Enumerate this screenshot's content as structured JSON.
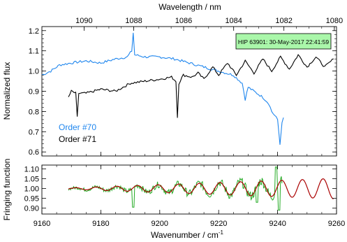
{
  "chart_data": [
    {
      "type": "line",
      "panel": "top",
      "ylabel": "Normalized flux",
      "top_xlabel": "Wavelength / nm",
      "top_ticks": [
        1090,
        1088,
        1086,
        1084,
        1082,
        1080
      ],
      "xlim": [
        9160,
        9260
      ],
      "ylim": [
        0.58,
        1.22
      ],
      "yticks": [
        0.6,
        0.7,
        0.8,
        0.9,
        1.0,
        1.1,
        1.2
      ],
      "ytick_labels": [
        "0.6",
        "0.7",
        "0.8",
        "0.9",
        "1.0",
        "1.1",
        "1.2"
      ],
      "annotation": "HIP 63901: 30-May-2017 22:41:59",
      "legend_position": "lower-left",
      "series": [
        {
          "name": "Order #70",
          "color": "#1f86ee",
          "x": [
            9160,
            9163,
            9166,
            9170,
            9175,
            9180,
            9185,
            9189,
            9190.5,
            9191,
            9191.5,
            9195,
            9200,
            9205,
            9210,
            9215,
            9220,
            9225,
            9228,
            9229,
            9230,
            9232,
            9235,
            9237,
            9238,
            9239,
            9240,
            9240.8,
            9241.5,
            9242
          ],
          "y": [
            0.98,
            1.0,
            1.03,
            1.04,
            1.05,
            1.04,
            1.06,
            1.07,
            1.1,
            1.19,
            1.08,
            1.07,
            1.07,
            1.06,
            1.04,
            1.02,
            1.0,
            0.98,
            0.94,
            0.86,
            0.92,
            0.9,
            0.87,
            0.84,
            0.8,
            0.78,
            0.76,
            0.64,
            0.74,
            0.77
          ]
        },
        {
          "name": "Order #71",
          "color": "#000000",
          "x": [
            9169,
            9170,
            9171.5,
            9172,
            9172.5,
            9175,
            9180,
            9185,
            9190,
            9195,
            9200,
            9204,
            9205.5,
            9206,
            9206.5,
            9208,
            9211,
            9213,
            9215,
            9218,
            9220,
            9223,
            9226,
            9229,
            9232,
            9235,
            9238,
            9241,
            9244,
            9247,
            9250,
            9253,
            9256,
            9259
          ],
          "y": [
            0.87,
            0.9,
            0.89,
            0.77,
            0.89,
            0.89,
            0.91,
            0.9,
            0.94,
            0.95,
            0.96,
            0.97,
            0.95,
            0.77,
            0.94,
            0.98,
            0.97,
            0.99,
            0.96,
            1.02,
            0.98,
            1.04,
            0.98,
            1.05,
            0.99,
            1.06,
            1.0,
            1.07,
            1.01,
            1.08,
            1.02,
            1.07,
            1.02,
            1.06
          ]
        }
      ]
    },
    {
      "type": "line",
      "panel": "bottom",
      "ylabel": "Fringing function",
      "xlabel": "Wavenumber / cm",
      "xlabel_sup": "-1",
      "xlim": [
        9160,
        9260
      ],
      "xticks": [
        9160,
        9180,
        9200,
        9220,
        9240,
        9260
      ],
      "xtick_labels": [
        "9160",
        "9180",
        "9200",
        "9220",
        "9240",
        "9260"
      ],
      "ylim": [
        0.87,
        1.12
      ],
      "yticks": [
        0.9,
        0.95,
        1.0,
        1.05,
        1.1
      ],
      "ytick_labels": [
        "0.90",
        "0.95",
        "1.00",
        "1.05",
        "1.10"
      ],
      "data_series": {
        "color": "#22aa22",
        "x_start": 9169,
        "x_end": 9241.5
      },
      "model_series": {
        "color": "#aa0000",
        "x_start": 9169,
        "x_end": 9259,
        "amplitude_start": 0.003,
        "amplitude_end": 0.052,
        "period": 7.0
      }
    }
  ]
}
